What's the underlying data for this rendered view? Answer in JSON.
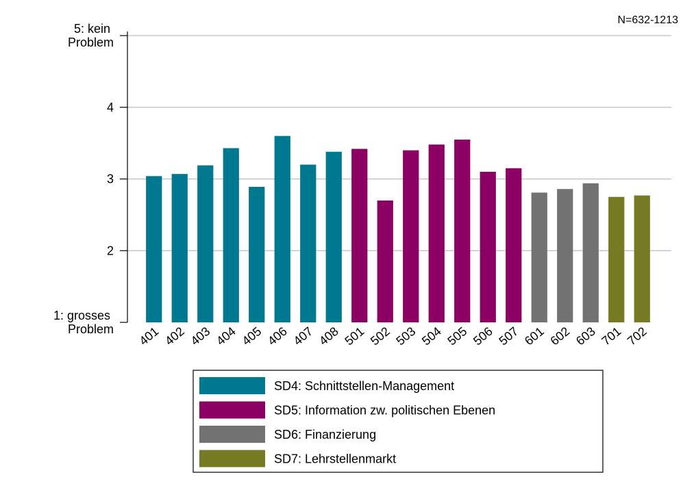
{
  "chart_data": {
    "type": "bar",
    "annotation": "N=632-1213",
    "categories": [
      "401",
      "402",
      "403",
      "404",
      "405",
      "406",
      "407",
      "408",
      "501",
      "502",
      "503",
      "504",
      "505",
      "506",
      "507",
      "601",
      "602",
      "603",
      "701",
      "702"
    ],
    "series": [
      {
        "name": "SD4: Schnittstellen-Management",
        "color": "#00788f",
        "values": [
          3.04,
          3.07,
          3.19,
          3.43,
          2.89,
          3.6,
          3.2,
          3.38,
          null,
          null,
          null,
          null,
          null,
          null,
          null,
          null,
          null,
          null,
          null,
          null
        ]
      },
      {
        "name": "SD5: Information zw. politischen Ebenen",
        "color": "#8c0063",
        "values": [
          null,
          null,
          null,
          null,
          null,
          null,
          null,
          null,
          3.42,
          2.7,
          3.4,
          3.48,
          3.55,
          3.1,
          3.15,
          null,
          null,
          null,
          null,
          null
        ]
      },
      {
        "name": "SD6: Finanzierung",
        "color": "#727272",
        "values": [
          null,
          null,
          null,
          null,
          null,
          null,
          null,
          null,
          null,
          null,
          null,
          null,
          null,
          null,
          null,
          2.81,
          2.86,
          2.94,
          null,
          null
        ]
      },
      {
        "name": "SD7: Lehrstellenmarkt",
        "color": "#767a22",
        "values": [
          null,
          null,
          null,
          null,
          null,
          null,
          null,
          null,
          null,
          null,
          null,
          null,
          null,
          null,
          null,
          null,
          null,
          null,
          2.75,
          2.77
        ]
      }
    ],
    "ylim": [
      1,
      5
    ],
    "yticks": [
      {
        "value": 1,
        "label": "1: grosses Problem"
      },
      2,
      3,
      4,
      {
        "value": 5,
        "label": "5: kein Problem"
      }
    ],
    "grid": true
  }
}
